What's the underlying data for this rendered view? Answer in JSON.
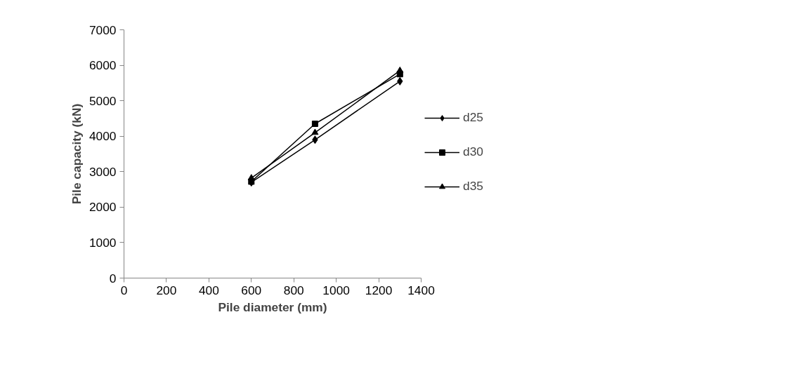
{
  "chart_data": {
    "type": "line",
    "xlabel": "Pile diameter (mm)",
    "ylabel": "Pile capacity (kN)",
    "x": [
      600,
      900,
      1300
    ],
    "series": [
      {
        "name": "d25",
        "color": "#000000",
        "marker": "diamond",
        "values": [
          2700,
          3900,
          5550
        ]
      },
      {
        "name": "d30",
        "color": "#000000",
        "marker": "square",
        "values": [
          2720,
          4350,
          5750
        ]
      },
      {
        "name": "d35",
        "color": "#000000",
        "marker": "triangle",
        "values": [
          2820,
          4100,
          5850
        ]
      }
    ],
    "xlim": [
      0,
      1400
    ],
    "xticks": [
      0,
      200,
      400,
      600,
      800,
      1000,
      1200,
      1400
    ],
    "ylim": [
      0,
      7000
    ],
    "yticks": [
      0,
      1000,
      2000,
      3000,
      4000,
      5000,
      6000,
      7000
    ],
    "grid": false,
    "legend": "right",
    "line_style": "solid"
  }
}
